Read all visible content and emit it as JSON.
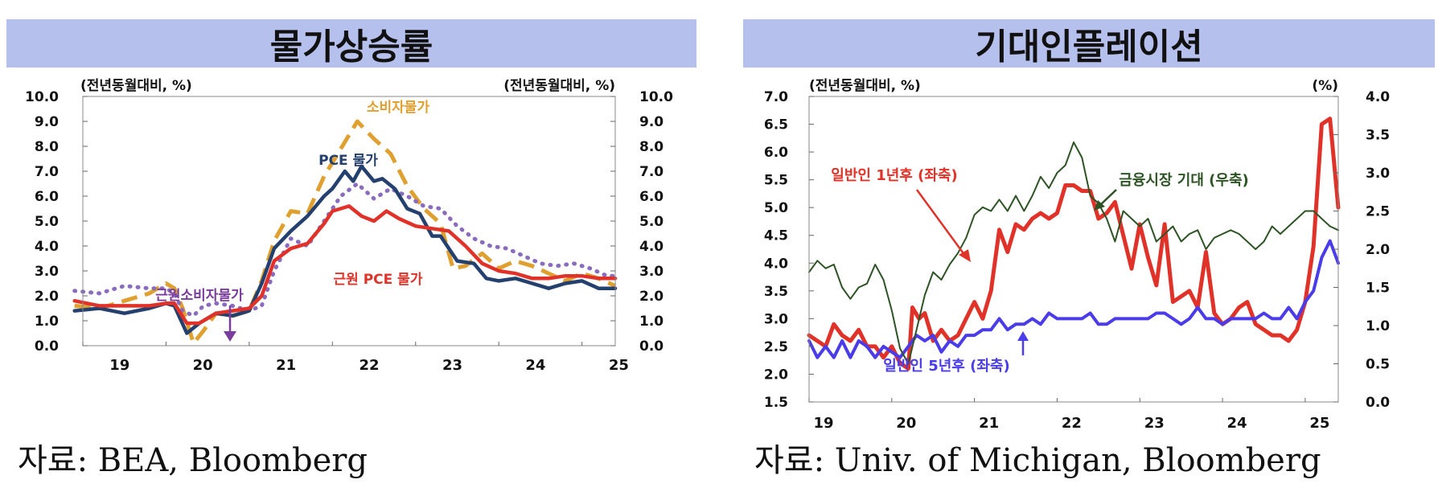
{
  "inflation": {
    "title": "물가상승률",
    "source": "자료:  BEA,  Bloomberg",
    "unit_left": "(전년동월대비, %)",
    "unit_right": "(전년동월대비, %)"
  },
  "expectations": {
    "title": "기대인플레이션",
    "source": "자료:  Univ.  of  Michigan,  Bloomberg",
    "unit_left": "(전년동월대비, %)",
    "unit_right": "(%)"
  },
  "colors": {
    "cpi": "#e0a030",
    "pce": "#24406e",
    "core_pce": "#e03228",
    "core_cpi": "#8a6cbf",
    "annotation_purple": "#7a3d9c",
    "mich_1y": "#e03228",
    "mich_5y": "#4a3ce8",
    "market": "#2e5426"
  },
  "chart_data": [
    {
      "type": "line",
      "title": "물가상승률",
      "x_ticks": [
        "19",
        "20",
        "21",
        "22",
        "23",
        "24",
        "25"
      ],
      "x_range": [
        2019.0,
        2025.4
      ],
      "ylim": [
        0,
        10
      ],
      "yticks": [
        "0.0",
        "1.0",
        "2.0",
        "3.0",
        "4.0",
        "5.0",
        "6.0",
        "7.0",
        "8.0",
        "9.0",
        "10.0"
      ],
      "annotations": {
        "cpi": "소비자물가",
        "pce": "PCE 물가",
        "core_pce": "근원 PCE 물가",
        "core_cpi": "근원소비자물가"
      },
      "series": [
        {
          "name": "소비자물가",
          "key": "cpi",
          "style": "dashed",
          "x": [
            2018.9,
            2019.2,
            2019.5,
            2019.8,
            2020.0,
            2020.1,
            2020.2,
            2020.33,
            2020.45,
            2020.6,
            2020.8,
            2021.0,
            2021.15,
            2021.3,
            2021.5,
            2021.7,
            2021.9,
            2022.1,
            2022.3,
            2022.5,
            2022.7,
            2022.9,
            2023.1,
            2023.3,
            2023.45,
            2023.6,
            2023.8,
            2024.0,
            2024.2,
            2024.4,
            2024.6,
            2024.8,
            2025.0,
            2025.2,
            2025.4
          ],
          "values": [
            1.6,
            1.5,
            1.8,
            2.1,
            2.5,
            2.3,
            1.5,
            0.1,
            0.6,
            1.3,
            1.2,
            1.4,
            2.6,
            4.2,
            5.4,
            5.3,
            6.8,
            7.9,
            9.0,
            8.3,
            7.7,
            6.4,
            5.5,
            4.9,
            3.1,
            3.2,
            3.7,
            3.1,
            3.4,
            3.2,
            2.9,
            2.6,
            2.9,
            2.7,
            2.4
          ]
        },
        {
          "name": "근원소비자물가",
          "key": "core_cpi",
          "style": "dotted",
          "x": [
            2018.9,
            2019.2,
            2019.5,
            2019.8,
            2020.0,
            2020.1,
            2020.2,
            2020.33,
            2020.45,
            2020.6,
            2020.8,
            2021.0,
            2021.15,
            2021.3,
            2021.5,
            2021.7,
            2021.9,
            2022.1,
            2022.3,
            2022.5,
            2022.7,
            2022.9,
            2023.1,
            2023.3,
            2023.5,
            2023.7,
            2023.9,
            2024.1,
            2024.3,
            2024.5,
            2024.7,
            2024.9,
            2025.1,
            2025.3,
            2025.4
          ],
          "values": [
            2.2,
            2.1,
            2.4,
            2.3,
            2.3,
            2.1,
            1.4,
            1.2,
            1.6,
            1.7,
            1.6,
            1.4,
            1.6,
            3.0,
            4.3,
            4.0,
            5.0,
            6.0,
            6.5,
            5.9,
            6.3,
            6.0,
            5.6,
            5.5,
            4.8,
            4.3,
            4.0,
            3.9,
            3.6,
            3.3,
            3.2,
            3.3,
            3.1,
            2.8,
            2.8
          ]
        },
        {
          "name": "PCE 물가",
          "key": "pce",
          "style": "solid",
          "x": [
            2018.9,
            2019.2,
            2019.5,
            2019.8,
            2020.0,
            2020.1,
            2020.25,
            2020.4,
            2020.6,
            2020.8,
            2021.0,
            2021.15,
            2021.3,
            2021.5,
            2021.7,
            2021.9,
            2022.0,
            2022.15,
            2022.25,
            2022.35,
            2022.5,
            2022.6,
            2022.75,
            2022.9,
            2023.05,
            2023.2,
            2023.3,
            2023.5,
            2023.7,
            2023.85,
            2024.0,
            2024.2,
            2024.4,
            2024.6,
            2024.8,
            2025.0,
            2025.2,
            2025.4
          ],
          "values": [
            1.4,
            1.5,
            1.3,
            1.5,
            1.7,
            1.6,
            0.5,
            0.9,
            1.3,
            1.2,
            1.4,
            2.5,
            3.9,
            4.6,
            5.2,
            6.0,
            6.3,
            7.0,
            6.6,
            7.2,
            6.6,
            6.7,
            6.3,
            5.5,
            5.3,
            4.4,
            4.4,
            3.4,
            3.3,
            2.7,
            2.6,
            2.7,
            2.5,
            2.3,
            2.5,
            2.6,
            2.3,
            2.3
          ]
        },
        {
          "name": "근원 PCE 물가",
          "key": "core_pce",
          "style": "solid",
          "x": [
            2018.9,
            2019.2,
            2019.5,
            2019.8,
            2020.0,
            2020.1,
            2020.25,
            2020.4,
            2020.6,
            2020.8,
            2021.0,
            2021.15,
            2021.3,
            2021.5,
            2021.7,
            2021.9,
            2022.0,
            2022.2,
            2022.35,
            2022.5,
            2022.65,
            2022.8,
            2023.0,
            2023.2,
            2023.4,
            2023.6,
            2023.8,
            2024.0,
            2024.2,
            2024.4,
            2024.6,
            2024.8,
            2025.0,
            2025.2,
            2025.4
          ],
          "values": [
            1.8,
            1.6,
            1.6,
            1.6,
            1.7,
            1.7,
            0.9,
            0.9,
            1.3,
            1.4,
            1.5,
            2.0,
            3.4,
            3.9,
            4.1,
            4.9,
            5.4,
            5.6,
            5.2,
            5.0,
            5.4,
            5.1,
            4.8,
            4.7,
            4.6,
            4.0,
            3.3,
            3.0,
            2.9,
            2.7,
            2.7,
            2.8,
            2.8,
            2.7,
            2.7
          ]
        }
      ]
    },
    {
      "type": "line",
      "title": "기대인플레이션",
      "x_ticks": [
        "19",
        "20",
        "21",
        "22",
        "23",
        "24",
        "25"
      ],
      "x_range": [
        2019.0,
        2025.4
      ],
      "ylim_left": [
        1.5,
        7.0
      ],
      "ylim_right": [
        0.0,
        4.0
      ],
      "yticks_left": [
        "1.5",
        "2.0",
        "2.5",
        "3.0",
        "3.5",
        "4.0",
        "4.5",
        "5.0",
        "5.5",
        "6.0",
        "6.5",
        "7.0"
      ],
      "yticks_right": [
        "0.0",
        "0.5",
        "1.0",
        "1.5",
        "2.0",
        "2.5",
        "3.0",
        "3.5",
        "4.0"
      ],
      "annotations": {
        "mich_1y": "일반인 1년후 (좌축)",
        "mich_5y": "일반인 5년후 (좌축)",
        "market": "금융시장 기대 (우축)"
      },
      "series": [
        {
          "name": "일반인 1년후 (좌축)",
          "key": "mich_1y",
          "axis": "left",
          "x": [
            2019.0,
            2019.1,
            2019.2,
            2019.3,
            2019.4,
            2019.5,
            2019.6,
            2019.7,
            2019.8,
            2019.9,
            2020.0,
            2020.1,
            2020.2,
            2020.25,
            2020.33,
            2020.4,
            2020.5,
            2020.6,
            2020.7,
            2020.8,
            2020.9,
            2021.0,
            2021.1,
            2021.2,
            2021.3,
            2021.4,
            2021.5,
            2021.6,
            2021.7,
            2021.8,
            2021.9,
            2022.0,
            2022.1,
            2022.2,
            2022.3,
            2022.4,
            2022.5,
            2022.6,
            2022.7,
            2022.8,
            2022.9,
            2023.0,
            2023.1,
            2023.2,
            2023.3,
            2023.4,
            2023.5,
            2023.6,
            2023.7,
            2023.8,
            2023.9,
            2024.0,
            2024.1,
            2024.2,
            2024.3,
            2024.4,
            2024.5,
            2024.6,
            2024.7,
            2024.8,
            2024.9,
            2025.0,
            2025.1,
            2025.2,
            2025.3,
            2025.4
          ],
          "values": [
            2.7,
            2.6,
            2.5,
            2.9,
            2.7,
            2.6,
            2.8,
            2.5,
            2.5,
            2.3,
            2.5,
            2.2,
            2.1,
            3.2,
            3.0,
            3.1,
            2.6,
            2.8,
            2.6,
            2.7,
            3.0,
            3.3,
            3.0,
            3.5,
            4.6,
            4.2,
            4.7,
            4.6,
            4.8,
            4.9,
            4.8,
            4.9,
            5.4,
            5.4,
            5.3,
            5.3,
            4.8,
            4.9,
            5.1,
            4.5,
            3.9,
            4.7,
            4.1,
            3.6,
            4.7,
            3.3,
            3.4,
            3.5,
            3.2,
            4.2,
            3.1,
            2.9,
            3.0,
            3.2,
            3.3,
            2.9,
            2.8,
            2.7,
            2.7,
            2.6,
            2.8,
            3.3,
            4.3,
            6.5,
            6.6,
            5.0
          ]
        },
        {
          "name": "일반인 5년후 (좌축)",
          "key": "mich_5y",
          "axis": "left",
          "x": [
            2019.0,
            2019.1,
            2019.2,
            2019.3,
            2019.4,
            2019.5,
            2019.6,
            2019.7,
            2019.8,
            2019.9,
            2020.0,
            2020.1,
            2020.2,
            2020.3,
            2020.4,
            2020.5,
            2020.6,
            2020.7,
            2020.8,
            2020.9,
            2021.0,
            2021.1,
            2021.2,
            2021.3,
            2021.4,
            2021.5,
            2021.6,
            2021.7,
            2021.8,
            2021.9,
            2022.0,
            2022.1,
            2022.2,
            2022.3,
            2022.4,
            2022.5,
            2022.6,
            2022.7,
            2022.8,
            2022.9,
            2023.0,
            2023.1,
            2023.2,
            2023.3,
            2023.4,
            2023.5,
            2023.6,
            2023.7,
            2023.8,
            2023.9,
            2024.0,
            2024.1,
            2024.2,
            2024.3,
            2024.4,
            2024.5,
            2024.6,
            2024.7,
            2024.8,
            2024.9,
            2025.0,
            2025.1,
            2025.2,
            2025.3,
            2025.4
          ],
          "values": [
            2.6,
            2.3,
            2.5,
            2.3,
            2.6,
            2.3,
            2.6,
            2.5,
            2.3,
            2.5,
            2.4,
            2.3,
            2.5,
            2.7,
            2.6,
            2.7,
            2.4,
            2.6,
            2.5,
            2.7,
            2.7,
            2.8,
            2.8,
            3.0,
            2.8,
            2.9,
            2.9,
            3.0,
            2.9,
            3.1,
            3.0,
            3.0,
            3.0,
            3.0,
            3.1,
            2.9,
            2.9,
            3.0,
            3.0,
            3.0,
            3.0,
            3.0,
            3.1,
            3.1,
            3.0,
            2.9,
            3.0,
            3.2,
            3.0,
            3.0,
            2.9,
            3.0,
            3.0,
            3.0,
            3.0,
            3.1,
            3.0,
            3.0,
            3.2,
            3.0,
            3.3,
            3.5,
            4.1,
            4.4,
            4.0
          ]
        },
        {
          "name": "금융시장 기대 (우축)",
          "key": "market",
          "axis": "right",
          "x": [
            2019.0,
            2019.1,
            2019.2,
            2019.3,
            2019.4,
            2019.5,
            2019.6,
            2019.7,
            2019.8,
            2019.9,
            2020.0,
            2020.1,
            2020.2,
            2020.3,
            2020.4,
            2020.5,
            2020.6,
            2020.7,
            2020.8,
            2020.9,
            2021.0,
            2021.1,
            2021.2,
            2021.3,
            2021.4,
            2021.5,
            2021.6,
            2021.7,
            2021.8,
            2021.9,
            2022.0,
            2022.1,
            2022.2,
            2022.3,
            2022.4,
            2022.5,
            2022.6,
            2022.7,
            2022.8,
            2022.9,
            2023.0,
            2023.1,
            2023.2,
            2023.3,
            2023.4,
            2023.5,
            2023.6,
            2023.7,
            2023.8,
            2023.9,
            2024.0,
            2024.1,
            2024.2,
            2024.3,
            2024.4,
            2024.5,
            2024.6,
            2024.7,
            2024.8,
            2024.9,
            2025.0,
            2025.1,
            2025.2,
            2025.3,
            2025.4
          ],
          "values": [
            1.7,
            1.85,
            1.75,
            1.8,
            1.5,
            1.35,
            1.5,
            1.55,
            1.8,
            1.6,
            1.2,
            0.7,
            0.5,
            0.95,
            1.4,
            1.7,
            1.6,
            1.8,
            1.95,
            2.15,
            2.45,
            2.55,
            2.5,
            2.65,
            2.5,
            2.7,
            2.5,
            2.7,
            2.95,
            2.8,
            3.0,
            3.1,
            3.4,
            3.2,
            2.7,
            2.6,
            2.4,
            2.1,
            2.5,
            2.4,
            2.3,
            2.4,
            2.1,
            2.2,
            2.3,
            2.1,
            2.2,
            2.25,
            2.0,
            2.15,
            2.2,
            2.25,
            2.2,
            2.1,
            2.0,
            2.1,
            2.3,
            2.2,
            2.3,
            2.4,
            2.5,
            2.5,
            2.4,
            2.3,
            2.25
          ]
        }
      ]
    }
  ]
}
